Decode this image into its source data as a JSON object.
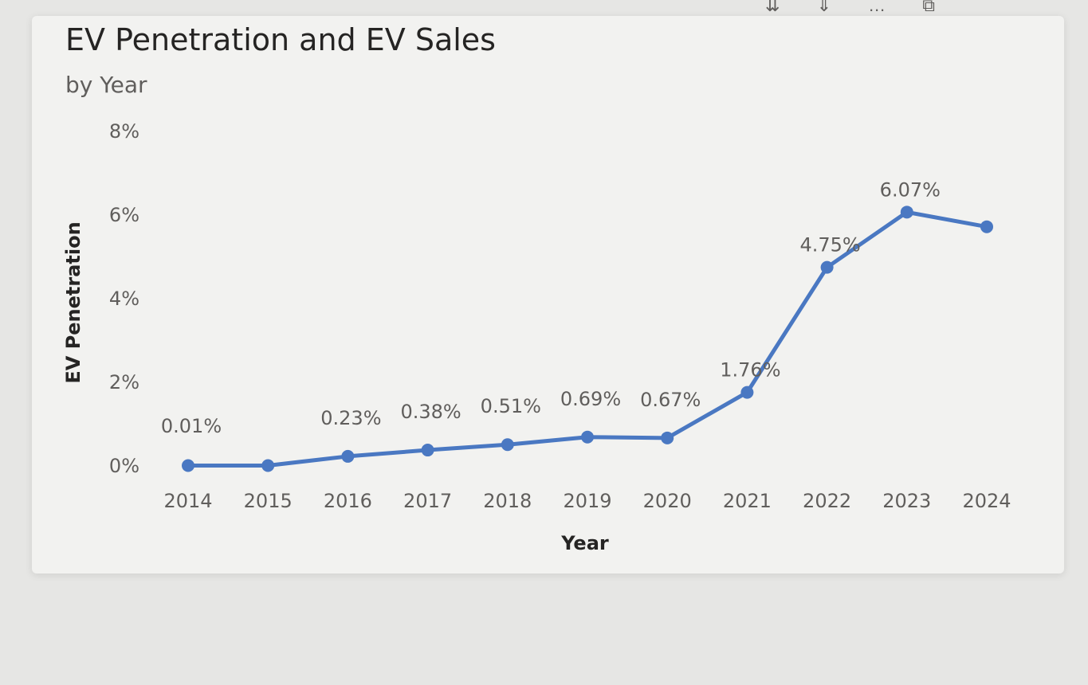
{
  "toolbar": {
    "icons": [
      "drill-down-icon",
      "expand-all-down-icon",
      "more-icon",
      "focus-mode-icon"
    ]
  },
  "chart_data": {
    "type": "line",
    "title": "EV Penetration and EV Sales",
    "subtitle": "by Year",
    "xlabel": "Year",
    "ylabel": "EV Penetration",
    "categories": [
      "2014",
      "2015",
      "2016",
      "2017",
      "2018",
      "2019",
      "2020",
      "2021",
      "2022",
      "2023",
      "2024"
    ],
    "series": [
      {
        "values": [
          0.01,
          0.01,
          0.23,
          0.38,
          0.51,
          0.69,
          0.67,
          1.76,
          4.75,
          6.07,
          5.72
        ],
        "labels": [
          "0.01%",
          "",
          "0.23%",
          "0.38%",
          "0.51%",
          "0.69%",
          "0.67%",
          "1.76%",
          "4.75%",
          "6.07%",
          ""
        ],
        "color": "#4a78c2"
      }
    ],
    "ylim": [
      0,
      8
    ],
    "yticks": [
      0,
      2,
      4,
      6,
      8
    ],
    "ytick_labels": [
      "0%",
      "2%",
      "4%",
      "6%",
      "8%"
    ],
    "grid": false,
    "legend": "none"
  }
}
